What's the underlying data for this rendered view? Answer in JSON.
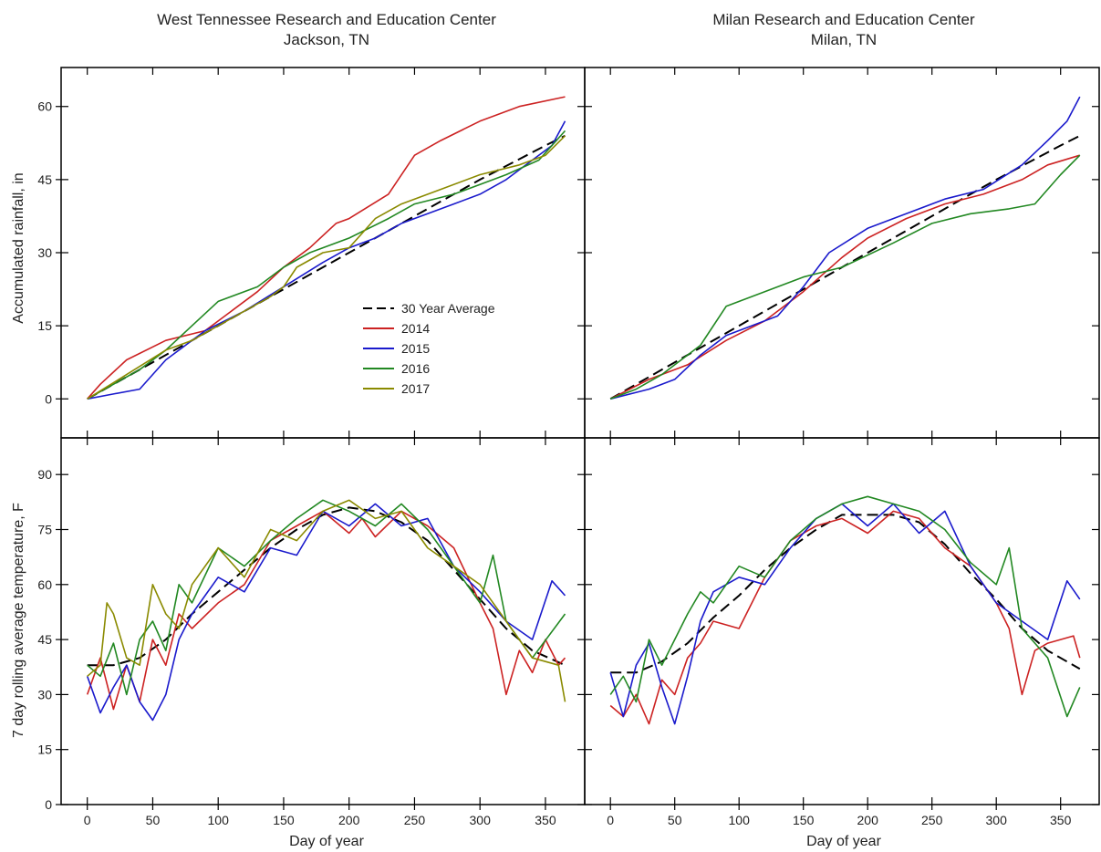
{
  "titles": {
    "left_line1": "West Tennessee Research and Education Center",
    "left_line2": "Jackson, TN",
    "right_line1": "Milan Research and Education Center",
    "right_line2": "Milan, TN"
  },
  "axes": {
    "xlabel": "Day of year",
    "ylabel_top": "Accumulated rainfall, in",
    "ylabel_bottom": "7 day rolling average temperature, F",
    "x_ticks": [
      0,
      50,
      100,
      150,
      200,
      250,
      300,
      350
    ],
    "xlim": [
      -20,
      380
    ],
    "rain_ticks": [
      0,
      15,
      30,
      45,
      60
    ],
    "rain_ylim": [
      -8,
      68
    ],
    "temp_ticks": [
      0,
      15,
      30,
      45,
      60,
      75,
      90
    ],
    "temp_ylim": [
      0,
      100
    ]
  },
  "legend": {
    "location": "center-right of top-left panel",
    "entries": [
      "30 Year Average",
      "2014",
      "2015",
      "2016",
      "2017"
    ]
  },
  "colors": {
    "30 Year Average": "#000000",
    "2014": "#cc2222",
    "2015": "#1a1acc",
    "2016": "#228822",
    "2017": "#8a8a00"
  },
  "chart_data": [
    {
      "type": "line",
      "panel": "top-left",
      "x_label": "",
      "y_label": "Accumulated rainfall, in",
      "series": [
        {
          "name": "30 Year Average",
          "x": [
            0,
            50,
            100,
            150,
            200,
            250,
            300,
            350,
            365
          ],
          "y": [
            0,
            7.5,
            15,
            22.5,
            30,
            37.5,
            45,
            52,
            54
          ]
        },
        {
          "name": "2014",
          "x": [
            0,
            10,
            30,
            60,
            90,
            110,
            130,
            150,
            170,
            190,
            200,
            230,
            250,
            270,
            300,
            330,
            365
          ],
          "y": [
            0,
            3,
            8,
            12,
            14,
            18,
            22,
            27,
            31,
            36,
            37,
            42,
            50,
            53,
            57,
            60,
            62
          ]
        },
        {
          "name": "2015",
          "x": [
            0,
            20,
            40,
            60,
            90,
            120,
            150,
            180,
            200,
            220,
            240,
            260,
            280,
            300,
            320,
            340,
            355,
            365
          ],
          "y": [
            0,
            1,
            2,
            8,
            14,
            18,
            23,
            28,
            31,
            33,
            36,
            38,
            40,
            42,
            45,
            49,
            52,
            57
          ]
        },
        {
          "name": "2016",
          "x": [
            0,
            40,
            60,
            80,
            100,
            130,
            150,
            170,
            200,
            230,
            250,
            280,
            300,
            320,
            345,
            365
          ],
          "y": [
            0,
            6,
            10,
            15,
            20,
            23,
            27,
            30,
            33,
            37,
            40,
            42,
            44,
            46,
            49,
            55
          ]
        },
        {
          "name": "2017",
          "x": [
            0,
            30,
            60,
            80,
            100,
            120,
            140,
            150,
            160,
            180,
            200,
            220,
            240,
            270,
            300,
            330,
            350,
            365
          ],
          "y": [
            0,
            5,
            10,
            12,
            15,
            18,
            21,
            23,
            27,
            30,
            31,
            37,
            40,
            43,
            46,
            48,
            50,
            54
          ]
        }
      ]
    },
    {
      "type": "line",
      "panel": "top-right",
      "x_label": "",
      "y_label": "",
      "series": [
        {
          "name": "30 Year Average",
          "x": [
            0,
            50,
            100,
            150,
            200,
            250,
            300,
            350,
            365
          ],
          "y": [
            0,
            7.5,
            15,
            22.5,
            30,
            37.5,
            45,
            52,
            54
          ]
        },
        {
          "name": "2014",
          "x": [
            0,
            30,
            60,
            90,
            120,
            150,
            180,
            200,
            230,
            260,
            290,
            320,
            340,
            365
          ],
          "y": [
            0,
            4,
            7,
            12,
            16,
            22,
            29,
            33,
            37,
            40,
            42,
            45,
            48,
            50
          ]
        },
        {
          "name": "2015",
          "x": [
            0,
            30,
            50,
            70,
            90,
            130,
            150,
            170,
            200,
            230,
            260,
            290,
            320,
            340,
            355,
            365
          ],
          "y": [
            0,
            2,
            4,
            9,
            13,
            17,
            23,
            30,
            35,
            38,
            41,
            43,
            48,
            53,
            57,
            62
          ]
        },
        {
          "name": "2016",
          "x": [
            0,
            20,
            40,
            50,
            70,
            90,
            120,
            150,
            180,
            220,
            250,
            280,
            310,
            330,
            350,
            365
          ],
          "y": [
            0,
            2,
            5,
            7,
            11,
            19,
            22,
            25,
            27,
            32,
            36,
            38,
            39,
            40,
            46,
            50
          ]
        }
      ]
    },
    {
      "type": "line",
      "panel": "bottom-left",
      "x_label": "Day of year",
      "y_label": "7 day rolling average temperature, F",
      "series": [
        {
          "name": "30 Year Average",
          "x": [
            0,
            20,
            40,
            60,
            80,
            100,
            120,
            140,
            160,
            180,
            200,
            220,
            240,
            260,
            280,
            300,
            320,
            340,
            365
          ],
          "y": [
            38,
            38,
            40,
            45,
            52,
            58,
            64,
            70,
            75,
            79,
            81,
            80,
            77,
            72,
            64,
            56,
            48,
            42,
            38
          ]
        },
        {
          "name": "2014",
          "x": [
            0,
            10,
            20,
            30,
            40,
            50,
            60,
            70,
            80,
            100,
            120,
            140,
            160,
            180,
            200,
            210,
            220,
            240,
            260,
            280,
            300,
            310,
            320,
            330,
            340,
            350,
            360,
            365
          ],
          "y": [
            30,
            40,
            26,
            38,
            28,
            45,
            38,
            52,
            48,
            55,
            60,
            72,
            76,
            80,
            74,
            78,
            73,
            80,
            76,
            70,
            55,
            48,
            30,
            42,
            36,
            45,
            38,
            40
          ]
        },
        {
          "name": "2015",
          "x": [
            0,
            10,
            20,
            30,
            40,
            50,
            60,
            70,
            80,
            100,
            120,
            140,
            160,
            180,
            200,
            220,
            240,
            260,
            280,
            300,
            320,
            340,
            355,
            365
          ],
          "y": [
            35,
            25,
            32,
            38,
            28,
            23,
            30,
            45,
            52,
            62,
            58,
            70,
            68,
            80,
            76,
            82,
            76,
            78,
            65,
            58,
            50,
            45,
            61,
            57
          ]
        },
        {
          "name": "2016",
          "x": [
            0,
            10,
            20,
            30,
            40,
            50,
            60,
            70,
            80,
            100,
            120,
            140,
            160,
            180,
            200,
            220,
            240,
            260,
            280,
            300,
            310,
            320,
            340,
            365
          ],
          "y": [
            38,
            35,
            44,
            30,
            45,
            50,
            42,
            60,
            55,
            70,
            65,
            72,
            78,
            83,
            80,
            76,
            82,
            75,
            65,
            55,
            68,
            50,
            40,
            52
          ]
        },
        {
          "name": "2017",
          "x": [
            0,
            10,
            15,
            20,
            30,
            40,
            50,
            60,
            70,
            80,
            100,
            120,
            140,
            160,
            180,
            200,
            220,
            240,
            260,
            280,
            300,
            320,
            340,
            360,
            365
          ],
          "y": [
            35,
            38,
            55,
            52,
            40,
            38,
            60,
            52,
            48,
            60,
            70,
            62,
            75,
            72,
            80,
            83,
            78,
            80,
            70,
            65,
            60,
            50,
            40,
            38,
            28
          ]
        }
      ]
    },
    {
      "type": "line",
      "panel": "bottom-right",
      "x_label": "Day of year",
      "y_label": "",
      "series": [
        {
          "name": "30 Year Average",
          "x": [
            0,
            20,
            40,
            60,
            80,
            100,
            120,
            140,
            160,
            180,
            200,
            220,
            240,
            260,
            280,
            300,
            320,
            340,
            365
          ],
          "y": [
            36,
            36,
            39,
            44,
            51,
            57,
            64,
            70,
            75,
            79,
            79,
            79,
            77,
            71,
            63,
            56,
            48,
            42,
            37
          ]
        },
        {
          "name": "2014",
          "x": [
            0,
            10,
            20,
            30,
            40,
            50,
            60,
            70,
            80,
            100,
            120,
            140,
            160,
            180,
            200,
            220,
            240,
            260,
            280,
            300,
            310,
            320,
            330,
            340,
            360,
            365
          ],
          "y": [
            27,
            24,
            30,
            22,
            34,
            30,
            40,
            44,
            50,
            48,
            62,
            72,
            76,
            78,
            74,
            80,
            78,
            70,
            65,
            55,
            48,
            30,
            42,
            44,
            46,
            40
          ]
        },
        {
          "name": "2015",
          "x": [
            0,
            10,
            20,
            30,
            40,
            50,
            60,
            70,
            80,
            100,
            120,
            140,
            160,
            180,
            200,
            220,
            240,
            260,
            280,
            300,
            320,
            340,
            355,
            365
          ],
          "y": [
            36,
            24,
            38,
            44,
            32,
            22,
            35,
            50,
            58,
            62,
            60,
            70,
            78,
            82,
            76,
            82,
            74,
            80,
            65,
            55,
            50,
            45,
            61,
            56
          ]
        },
        {
          "name": "2016",
          "x": [
            0,
            10,
            20,
            30,
            40,
            50,
            60,
            70,
            80,
            100,
            120,
            140,
            160,
            180,
            200,
            220,
            240,
            260,
            280,
            300,
            310,
            320,
            340,
            355,
            365
          ],
          "y": [
            30,
            35,
            28,
            45,
            38,
            45,
            52,
            58,
            55,
            65,
            62,
            72,
            78,
            82,
            84,
            82,
            80,
            75,
            66,
            60,
            70,
            48,
            40,
            24,
            32
          ]
        }
      ]
    }
  ]
}
